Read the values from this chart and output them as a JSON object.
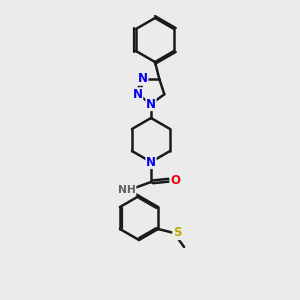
{
  "bg_color": "#ebebeb",
  "bond_color": "#1a1a1a",
  "bond_width": 1.8,
  "atom_colors": {
    "N": "#0000ee",
    "O": "#ee0000",
    "S": "#bbaa00",
    "C": "#1a1a1a",
    "H": "#606060"
  },
  "font_size_atom": 8.5,
  "figsize": [
    3.0,
    3.0
  ],
  "dpi": 100
}
